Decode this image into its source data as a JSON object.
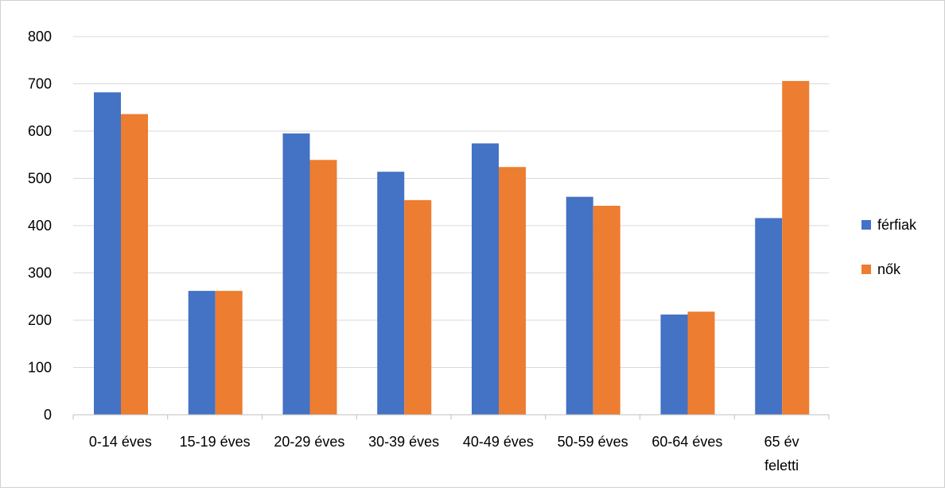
{
  "chart_data": {
    "type": "bar",
    "categories": [
      [
        "0-14 éves"
      ],
      [
        "15-19 éves"
      ],
      [
        "20-29 éves"
      ],
      [
        "30-39 éves"
      ],
      [
        "40-49 éves"
      ],
      [
        "50-59 éves"
      ],
      [
        "60-64 éves"
      ],
      [
        "65 év",
        "feletti"
      ]
    ],
    "series": [
      {
        "name": "férfiak",
        "color": "#4472C4",
        "values": [
          682,
          262,
          595,
          514,
          574,
          461,
          212,
          416
        ]
      },
      {
        "name": "nők",
        "color": "#ED7D31",
        "values": [
          636,
          262,
          539,
          454,
          524,
          442,
          218,
          706
        ]
      }
    ],
    "y_ticks": [
      "0",
      "100",
      "200",
      "300",
      "400",
      "500",
      "600",
      "700",
      "800"
    ],
    "ylim": [
      0,
      800
    ],
    "grid": true,
    "legend_position": "right"
  }
}
